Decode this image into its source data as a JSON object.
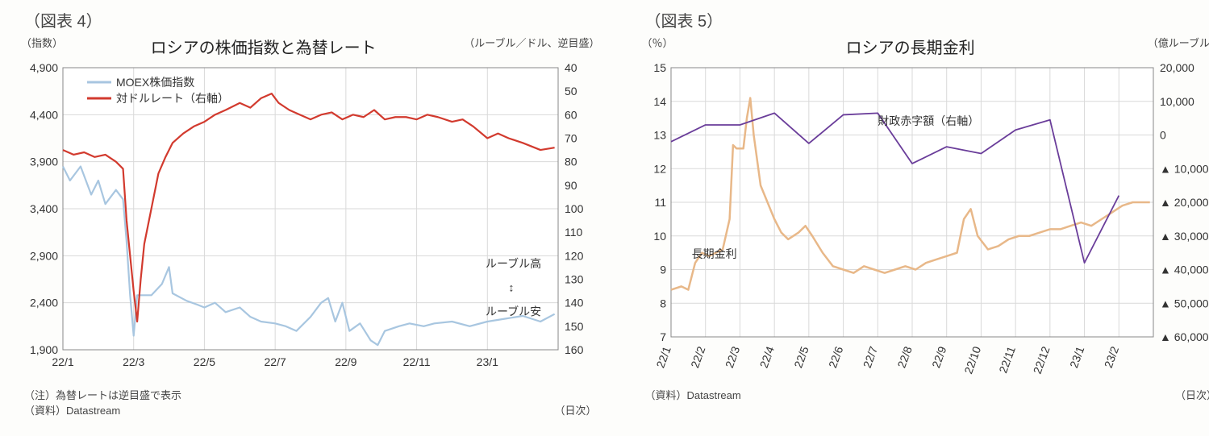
{
  "chart4": {
    "fig_label": "（図表 4）",
    "title": "ロシアの株価指数と為替レート",
    "left_axis_label": "（指数）",
    "right_axis_label": "（ルーブル／ドル、逆目盛）",
    "x_axis_label": "（日次）",
    "note1": "（注）為替レートは逆目盛で表示",
    "note2": "（資料）Datastream",
    "y_left": {
      "min": 1900,
      "max": 4900,
      "ticks": [
        1900,
        2400,
        2900,
        3400,
        3900,
        4400,
        4900
      ]
    },
    "y_right": {
      "min": 160,
      "max": 40,
      "ticks": [
        40,
        50,
        60,
        70,
        80,
        90,
        100,
        110,
        120,
        130,
        140,
        150,
        160
      ]
    },
    "x_ticks": [
      "22/1",
      "22/3",
      "22/5",
      "22/7",
      "22/9",
      "22/11",
      "23/1"
    ],
    "x_range_months": 14,
    "colors": {
      "moex": "#a8c6e0",
      "fx": "#d23a2e",
      "grid": "#d9d9d9",
      "border": "#888",
      "bg": "#ffffff",
      "text": "#333333"
    },
    "line_width": 2.2,
    "legend": {
      "moex": "MOEX株価指数",
      "fx": "対ドルレート（右軸）"
    },
    "annot": {
      "high": "ルーブル高",
      "low": "ルーブル安"
    },
    "series_moex": [
      [
        0,
        3850
      ],
      [
        0.2,
        3700
      ],
      [
        0.5,
        3850
      ],
      [
        0.8,
        3550
      ],
      [
        1.0,
        3700
      ],
      [
        1.2,
        3450
      ],
      [
        1.5,
        3600
      ],
      [
        1.7,
        3500
      ],
      [
        1.8,
        3050
      ],
      [
        1.9,
        2480
      ],
      [
        2.0,
        2050
      ],
      [
        2.1,
        2480
      ],
      [
        2.3,
        2480
      ],
      [
        2.5,
        2480
      ],
      [
        2.8,
        2600
      ],
      [
        3.0,
        2780
      ],
      [
        3.1,
        2500
      ],
      [
        3.5,
        2420
      ],
      [
        3.8,
        2380
      ],
      [
        4.0,
        2350
      ],
      [
        4.3,
        2400
      ],
      [
        4.6,
        2300
      ],
      [
        5.0,
        2350
      ],
      [
        5.3,
        2250
      ],
      [
        5.6,
        2200
      ],
      [
        6.0,
        2180
      ],
      [
        6.3,
        2150
      ],
      [
        6.6,
        2100
      ],
      [
        7.0,
        2250
      ],
      [
        7.3,
        2400
      ],
      [
        7.5,
        2450
      ],
      [
        7.7,
        2200
      ],
      [
        7.9,
        2400
      ],
      [
        8.1,
        2100
      ],
      [
        8.4,
        2180
      ],
      [
        8.7,
        2000
      ],
      [
        8.9,
        1950
      ],
      [
        9.1,
        2100
      ],
      [
        9.5,
        2150
      ],
      [
        9.8,
        2180
      ],
      [
        10.2,
        2150
      ],
      [
        10.5,
        2180
      ],
      [
        11.0,
        2200
      ],
      [
        11.5,
        2150
      ],
      [
        12.0,
        2200
      ],
      [
        12.5,
        2230
      ],
      [
        13.0,
        2260
      ],
      [
        13.5,
        2200
      ],
      [
        13.9,
        2280
      ]
    ],
    "series_fx": [
      [
        0,
        75
      ],
      [
        0.3,
        77
      ],
      [
        0.6,
        76
      ],
      [
        0.9,
        78
      ],
      [
        1.2,
        77
      ],
      [
        1.5,
        80
      ],
      [
        1.7,
        83
      ],
      [
        1.8,
        105
      ],
      [
        1.9,
        120
      ],
      [
        2.0,
        135
      ],
      [
        2.1,
        148
      ],
      [
        2.2,
        130
      ],
      [
        2.3,
        115
      ],
      [
        2.5,
        100
      ],
      [
        2.7,
        85
      ],
      [
        2.9,
        78
      ],
      [
        3.1,
        72
      ],
      [
        3.4,
        68
      ],
      [
        3.7,
        65
      ],
      [
        4.0,
        63
      ],
      [
        4.3,
        60
      ],
      [
        4.6,
        58
      ],
      [
        5.0,
        55
      ],
      [
        5.3,
        57
      ],
      [
        5.6,
        53
      ],
      [
        5.9,
        51
      ],
      [
        6.1,
        55
      ],
      [
        6.4,
        58
      ],
      [
        6.7,
        60
      ],
      [
        7.0,
        62
      ],
      [
        7.3,
        60
      ],
      [
        7.6,
        59
      ],
      [
        7.9,
        62
      ],
      [
        8.2,
        60
      ],
      [
        8.5,
        61
      ],
      [
        8.8,
        58
      ],
      [
        9.1,
        62
      ],
      [
        9.4,
        61
      ],
      [
        9.7,
        61
      ],
      [
        10.0,
        62
      ],
      [
        10.3,
        60
      ],
      [
        10.6,
        61
      ],
      [
        11.0,
        63
      ],
      [
        11.3,
        62
      ],
      [
        11.6,
        65
      ],
      [
        12.0,
        70
      ],
      [
        12.3,
        68
      ],
      [
        12.6,
        70
      ],
      [
        13.0,
        72
      ],
      [
        13.5,
        75
      ],
      [
        13.9,
        74
      ]
    ]
  },
  "chart5": {
    "fig_label": "（図表 5）",
    "title": "ロシアの長期金利",
    "left_axis_label": "（％）",
    "right_axis_label": "（億ルーブル）",
    "x_axis_label": "（日次）",
    "note1": "（資料）Datastream",
    "y_left": {
      "min": 7,
      "max": 15,
      "ticks": [
        7,
        8,
        9,
        10,
        11,
        12,
        13,
        14,
        15
      ]
    },
    "y_right": {
      "min": -60000,
      "max": 20000,
      "ticks": [
        20000,
        10000,
        0,
        -10000,
        -20000,
        -30000,
        -40000,
        -50000,
        -60000
      ],
      "labels": [
        "20,000",
        "10,000",
        "0",
        "▲ 10,000",
        "▲ 20,000",
        "▲ 30,000",
        "▲ 40,000",
        "▲ 50,000",
        "▲ 60,000"
      ]
    },
    "x_ticks": [
      "22/1",
      "22/2",
      "22/3",
      "22/4",
      "22/5",
      "22/6",
      "22/7",
      "22/8",
      "22/9",
      "22/10",
      "22/11",
      "22/12",
      "23/1",
      "23/2"
    ],
    "x_range_months": 14,
    "colors": {
      "rate": "#e8b889",
      "deficit": "#6a3d9a",
      "grid": "#d9d9d9",
      "border": "#888",
      "bg": "#ffffff",
      "text": "#333333"
    },
    "line_width_rate": 2.5,
    "line_width_deficit": 1.8,
    "legend": {
      "rate": "長期金利",
      "deficit": "財政赤字額（右軸）"
    },
    "series_rate": [
      [
        0,
        8.4
      ],
      [
        0.3,
        8.5
      ],
      [
        0.5,
        8.4
      ],
      [
        0.7,
        9.2
      ],
      [
        0.9,
        9.5
      ],
      [
        1.1,
        9.4
      ],
      [
        1.3,
        9.5
      ],
      [
        1.5,
        9.6
      ],
      [
        1.7,
        10.5
      ],
      [
        1.8,
        12.7
      ],
      [
        1.9,
        12.6
      ],
      [
        2.0,
        12.6
      ],
      [
        2.1,
        12.6
      ],
      [
        2.2,
        13.5
      ],
      [
        2.3,
        14.1
      ],
      [
        2.4,
        13.0
      ],
      [
        2.6,
        11.5
      ],
      [
        2.8,
        11.0
      ],
      [
        3.0,
        10.5
      ],
      [
        3.2,
        10.1
      ],
      [
        3.4,
        9.9
      ],
      [
        3.7,
        10.1
      ],
      [
        3.9,
        10.3
      ],
      [
        4.1,
        10.0
      ],
      [
        4.4,
        9.5
      ],
      [
        4.7,
        9.1
      ],
      [
        5.0,
        9.0
      ],
      [
        5.3,
        8.9
      ],
      [
        5.6,
        9.1
      ],
      [
        5.9,
        9.0
      ],
      [
        6.2,
        8.9
      ],
      [
        6.5,
        9.0
      ],
      [
        6.8,
        9.1
      ],
      [
        7.1,
        9.0
      ],
      [
        7.4,
        9.2
      ],
      [
        7.7,
        9.3
      ],
      [
        8.0,
        9.4
      ],
      [
        8.3,
        9.5
      ],
      [
        8.5,
        10.5
      ],
      [
        8.7,
        10.8
      ],
      [
        8.9,
        10.0
      ],
      [
        9.2,
        9.6
      ],
      [
        9.5,
        9.7
      ],
      [
        9.8,
        9.9
      ],
      [
        10.1,
        10.0
      ],
      [
        10.4,
        10.0
      ],
      [
        10.7,
        10.1
      ],
      [
        11.0,
        10.2
      ],
      [
        11.3,
        10.2
      ],
      [
        11.6,
        10.3
      ],
      [
        11.9,
        10.4
      ],
      [
        12.2,
        10.3
      ],
      [
        12.5,
        10.5
      ],
      [
        12.8,
        10.7
      ],
      [
        13.1,
        10.9
      ],
      [
        13.4,
        11.0
      ],
      [
        13.7,
        11.0
      ],
      [
        13.9,
        11.0
      ]
    ],
    "series_deficit": [
      [
        0,
        -2000
      ],
      [
        1,
        3000
      ],
      [
        2,
        3000
      ],
      [
        3,
        6500
      ],
      [
        4,
        -2500
      ],
      [
        5,
        6000
      ],
      [
        6,
        6500
      ],
      [
        7,
        -8500
      ],
      [
        8,
        -3500
      ],
      [
        9,
        -5500
      ],
      [
        10,
        1500
      ],
      [
        11,
        4500
      ],
      [
        12,
        -38000
      ],
      [
        13,
        -18000
      ]
    ]
  }
}
